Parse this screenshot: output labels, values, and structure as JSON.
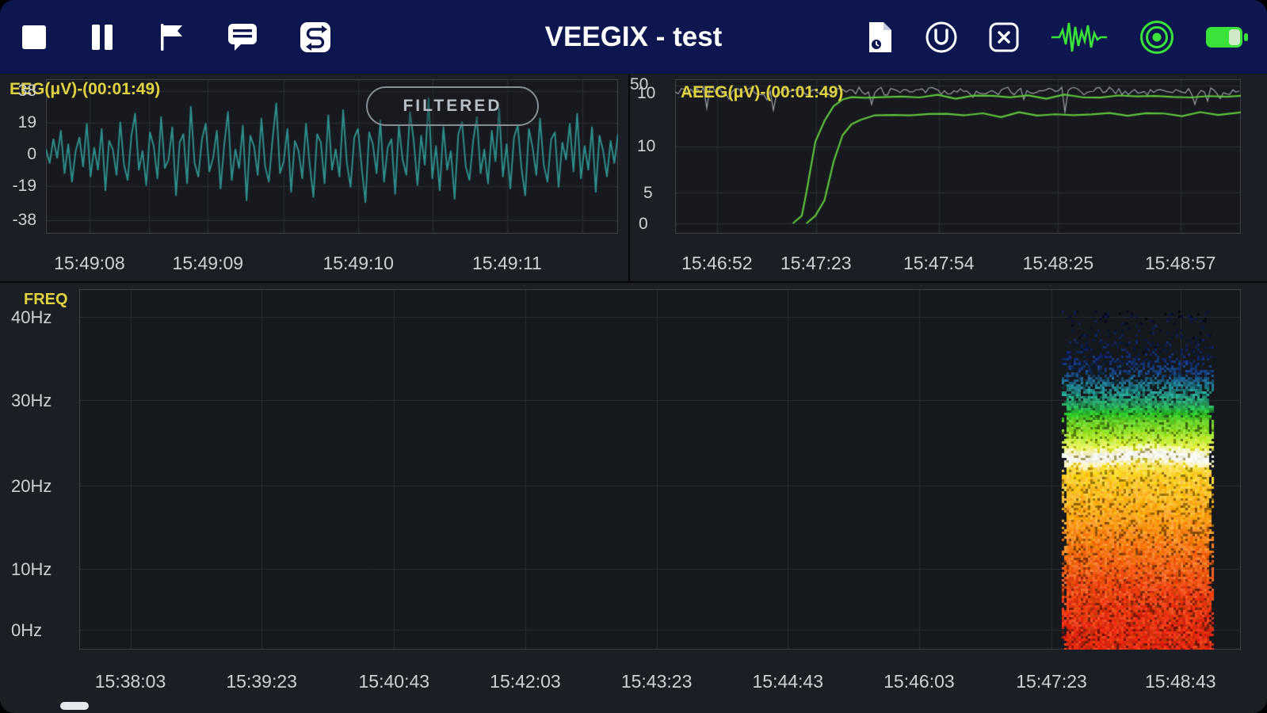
{
  "toolbar": {
    "title": "VEEGIX - test",
    "left_icons": [
      "stop-icon",
      "pause-icon",
      "flag-icon",
      "comment-icon",
      "swap-icon"
    ],
    "right_icons": [
      "file-clock-icon",
      "u-circle-icon",
      "close-box-icon",
      "waveform-icon",
      "broadcast-icon",
      "battery-icon"
    ]
  },
  "eeg_panel": {
    "title": "EEG(μV)-(00:01:49)",
    "filtered_label": "FILTERED",
    "y_ticks": [
      "38",
      "19",
      "0",
      "-19",
      "-38"
    ],
    "x_ticks": [
      "15:49:08",
      "15:49:09",
      "15:49:10",
      "15:49:11"
    ]
  },
  "aeeg_panel": {
    "title": "AEEG(μV)-(00:01:49)",
    "y_ticks": [
      "50",
      "10",
      "10",
      "5",
      "0"
    ],
    "x_ticks": [
      "15:46:52",
      "15:47:23",
      "15:47:54",
      "15:48:25",
      "15:48:57"
    ]
  },
  "freq_panel": {
    "title": "FREQ",
    "y_ticks": [
      "40Hz",
      "30Hz",
      "20Hz",
      "10Hz",
      "0Hz"
    ],
    "x_ticks": [
      "15:38:03",
      "15:39:23",
      "15:40:43",
      "15:42:03",
      "15:43:23",
      "15:44:43",
      "15:46:03",
      "15:47:23",
      "15:48:43"
    ]
  },
  "colors": {
    "toolbar_bg": "#0d164f",
    "panel_bg": "#1b1f25",
    "plot_bg": "#17191e",
    "grid": "#282d34",
    "frame": "#3e434a",
    "label_yellow": "#ded33e",
    "axis_text": "#ccd1d6",
    "eeg_line": "#2f8d8a",
    "aeeg_line": "#5fc23d",
    "raw_gray": "#9ba1a8",
    "icon_green": "#3ae33a"
  },
  "chart_data": [
    {
      "type": "line",
      "title": "EEG(μV)-(00:01:49)",
      "ylabel": "µV",
      "badge": "FILTERED",
      "y_ticks": [
        38,
        19,
        0,
        -19,
        -38
      ],
      "ylim": [
        -42,
        42
      ],
      "x_ticks": [
        "15:49:08",
        "15:49:09",
        "15:49:10",
        "15:49:11"
      ],
      "line_color": "#2f8d8a",
      "values": [
        3,
        -5,
        9,
        -2,
        14,
        -11,
        6,
        -16,
        2,
        10,
        -7,
        18,
        -13,
        4,
        -9,
        15,
        -21,
        8,
        3,
        -12,
        19,
        -6,
        -15,
        11,
        24,
        -9,
        2,
        -18,
        13,
        5,
        -14,
        22,
        -8,
        -3,
        16,
        -24,
        7,
        12,
        -17,
        28,
        -5,
        -13,
        9,
        18,
        -10,
        -2,
        14,
        -20,
        6,
        25,
        -15,
        3,
        -8,
        17,
        -27,
        11,
        5,
        -12,
        21,
        -7,
        -16,
        9,
        30,
        -11,
        -4,
        15,
        -22,
        8,
        2,
        -14,
        18,
        -6,
        -25,
        12,
        7,
        -17,
        23,
        -9,
        3,
        -13,
        26,
        -5,
        -19,
        10,
        15,
        -8,
        -28,
        13,
        6,
        -11,
        20,
        -16,
        4,
        9,
        -23,
        17,
        -3,
        -12,
        25,
        8,
        -18,
        11,
        -6,
        33,
        -14,
        5,
        -21,
        16,
        -9,
        2,
        -26,
        12,
        19,
        -7,
        -15,
        8,
        22,
        -11,
        3,
        -17,
        14,
        -4,
        27,
        -13,
        6,
        -20,
        10,
        17,
        -8,
        -24,
        15,
        4,
        -12,
        21,
        -6,
        -16,
        9,
        13,
        -19,
        7,
        -3,
        18,
        -10,
        24,
        -14,
        5,
        -9,
        16,
        -22,
        11,
        2,
        -13,
        8,
        -5,
        12
      ]
    },
    {
      "type": "line",
      "title": "AEEG(μV)-(00:01:49)",
      "scale": "semilog: linear 0-10 µV, logarithmic 10-100 µV",
      "y_ticks": [
        50,
        10,
        10,
        5,
        0
      ],
      "x_ticks": [
        "15:46:52",
        "15:47:23",
        "15:47:54",
        "15:48:25",
        "15:48:57"
      ],
      "x_range_seconds": 125,
      "line_color": "#5fc23d",
      "series": [
        {
          "name": "upper_margin_uV",
          "points": [
            [
              26,
              0
            ],
            [
              28,
              1
            ],
            [
              29,
              4
            ],
            [
              31,
              12
            ],
            [
              33,
              26
            ],
            [
              35,
              42
            ],
            [
              37,
              52
            ],
            [
              39,
              58
            ],
            [
              42,
              60
            ],
            [
              46,
              57
            ],
            [
              50,
              61
            ],
            [
              54,
              59
            ],
            [
              58,
              62
            ],
            [
              62,
              58
            ],
            [
              66,
              60
            ],
            [
              70,
              63
            ],
            [
              74,
              59
            ],
            [
              78,
              61
            ],
            [
              82,
              58
            ],
            [
              86,
              62
            ],
            [
              90,
              60
            ],
            [
              94,
              58
            ],
            [
              98,
              61
            ],
            [
              102,
              63
            ],
            [
              106,
              59
            ],
            [
              110,
              61
            ],
            [
              114,
              58
            ],
            [
              118,
              60
            ],
            [
              122,
              62
            ],
            [
              125,
              60
            ]
          ]
        },
        {
          "name": "lower_margin_uV",
          "points": [
            [
              29,
              0
            ],
            [
              31,
              1
            ],
            [
              33,
              3
            ],
            [
              35,
              8
            ],
            [
              37,
              15
            ],
            [
              39,
              22
            ],
            [
              41,
              27
            ],
            [
              44,
              31
            ],
            [
              48,
              30
            ],
            [
              52,
              32
            ],
            [
              56,
              31
            ],
            [
              60,
              33
            ],
            [
              64,
              31
            ],
            [
              68,
              32
            ],
            [
              72,
              30
            ],
            [
              76,
              33
            ],
            [
              80,
              31
            ],
            [
              84,
              32
            ],
            [
              88,
              30
            ],
            [
              92,
              33
            ],
            [
              96,
              32
            ],
            [
              100,
              31
            ],
            [
              104,
              33
            ],
            [
              108,
              32
            ],
            [
              112,
              31
            ],
            [
              116,
              33
            ],
            [
              120,
              32
            ],
            [
              125,
              33
            ]
          ]
        },
        {
          "name": "raw_trace",
          "desc": "noisy gray envelope near 90-110 µV across full width"
        }
      ]
    },
    {
      "type": "heatmap",
      "title": "FREQ spectrogram",
      "y_ticks": [
        "40Hz",
        "30Hz",
        "20Hz",
        "10Hz",
        "0Hz"
      ],
      "ylim_hz": [
        0,
        40
      ],
      "x_ticks": [
        "15:38:03",
        "15:39:23",
        "15:40:43",
        "15:42:03",
        "15:43:23",
        "15:44:43",
        "15:46:03",
        "15:47:23",
        "15:48:43"
      ],
      "active_block": {
        "start_label": "15:47:23",
        "x_start_frac": 0.846,
        "x_end_frac": 0.977
      },
      "bands": [
        {
          "freq_hz": [
            33,
            40
          ],
          "desc": "sparse dark-blue speckle",
          "color": "#2138b0"
        },
        {
          "freq_hz": [
            28,
            33
          ],
          "desc": "teal-green speckle",
          "color": "#2fae52"
        },
        {
          "freq_hz": [
            23.5,
            28
          ],
          "desc": "yellow-green",
          "color": "#9fd63c"
        },
        {
          "freq_hz": [
            21.3,
            23.5
          ],
          "desc": "bright white band",
          "color": "#ffffff"
        },
        {
          "freq_hz": [
            12,
            21.3
          ],
          "desc": "yellow",
          "color": "#ffcf35"
        },
        {
          "freq_hz": [
            6,
            12
          ],
          "desc": "orange",
          "color": "#ff8c28"
        },
        {
          "freq_hz": [
            0,
            6
          ],
          "desc": "red-orange",
          "color": "#ee4f22"
        }
      ]
    }
  ]
}
